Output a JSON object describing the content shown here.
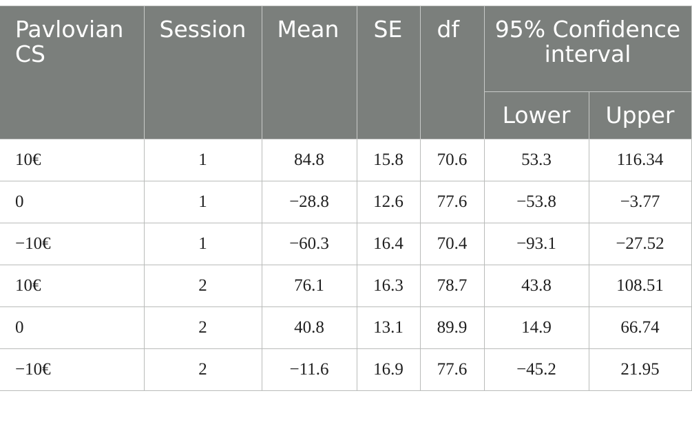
{
  "table": {
    "headers": {
      "cs": "Pavlovian CS",
      "session": "Session",
      "mean": "Mean",
      "se": "SE",
      "df": "df",
      "ci": "95% Confidence interval",
      "lower": "Lower",
      "upper": "Upper"
    },
    "rows": [
      {
        "cs": "10€",
        "session": "1",
        "mean": "84.8",
        "se": "15.8",
        "df": "70.6",
        "lower": "53.3",
        "upper": "116.34"
      },
      {
        "cs": "0",
        "session": "1",
        "mean": "−28.8",
        "se": "12.6",
        "df": "77.6",
        "lower": "−53.8",
        "upper": "−3.77"
      },
      {
        "cs": "−10€",
        "session": "1",
        "mean": "−60.3",
        "se": "16.4",
        "df": "70.4",
        "lower": "−93.1",
        "upper": "−27.52"
      },
      {
        "cs": "10€",
        "session": "2",
        "mean": "76.1",
        "se": "16.3",
        "df": "78.7",
        "lower": "43.8",
        "upper": "108.51"
      },
      {
        "cs": "0",
        "session": "2",
        "mean": "40.8",
        "se": "13.1",
        "df": "89.9",
        "lower": "14.9",
        "upper": "66.74"
      },
      {
        "cs": "−10€",
        "session": "2",
        "mean": "−11.6",
        "se": "16.9",
        "df": "77.6",
        "lower": "−45.2",
        "upper": "21.95"
      }
    ]
  },
  "colors": {
    "header_bg": "#7b7f7c",
    "header_text": "#ffffff",
    "border": "#b9bbb9"
  }
}
